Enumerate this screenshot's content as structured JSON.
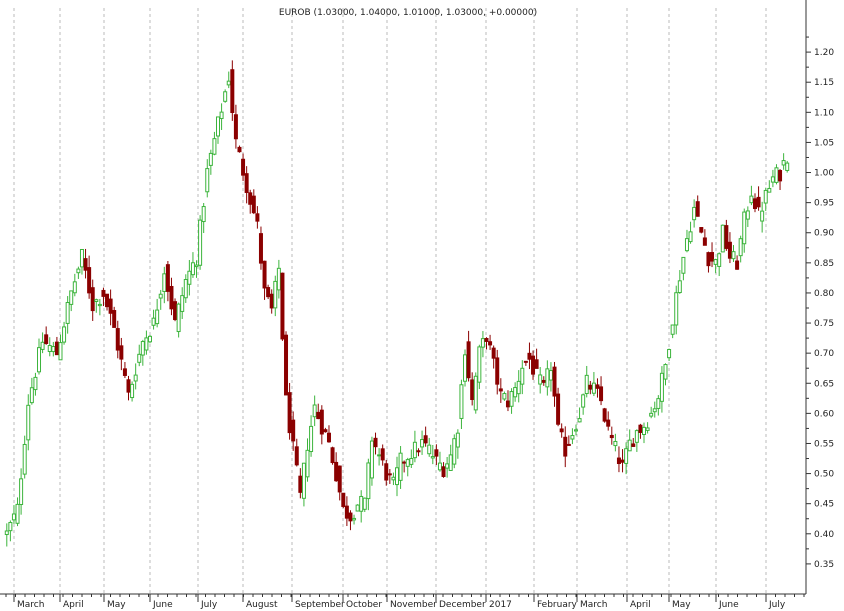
{
  "chart_data": {
    "type": "candlestick",
    "title": "EUROB (1.03000, 1.04000, 1.01000, 1.03000, +0.00000)",
    "ylim": [
      0.3,
      1.25
    ],
    "yticks": [
      0.35,
      0.4,
      0.45,
      0.5,
      0.55,
      0.6,
      0.65,
      0.7,
      0.75,
      0.8,
      0.85,
      0.9,
      0.95,
      1.0,
      1.05,
      1.1,
      1.15,
      1.2
    ],
    "ytick_labels": [
      "0.35",
      "0.40",
      "0.45",
      "0.50",
      "0.55",
      "0.60",
      "0.65",
      "0.70",
      "0.75",
      "0.80",
      "0.85",
      "0.90",
      "0.95",
      "1.00",
      "1.05",
      "1.10",
      "1.15",
      "1.20"
    ],
    "months": [
      "March",
      "April",
      "May",
      "June",
      "July",
      "August",
      "September",
      "October",
      "November",
      "December",
      "2017",
      "February",
      "March",
      "April",
      "May",
      "June",
      "July"
    ],
    "grid": "vertical-dashed",
    "colors": {
      "up": "#3cb43c",
      "down": "#8b0000",
      "grid": "#bbbbbb",
      "axis": "#333333"
    },
    "keypoints": [
      [
        0,
        0.4
      ],
      [
        3,
        0.44
      ],
      [
        6,
        0.62
      ],
      [
        10,
        0.72
      ],
      [
        14,
        0.7
      ],
      [
        18,
        0.8
      ],
      [
        21,
        0.86
      ],
      [
        24,
        0.78
      ],
      [
        27,
        0.8
      ],
      [
        30,
        0.74
      ],
      [
        34,
        0.63
      ],
      [
        38,
        0.72
      ],
      [
        41,
        0.75
      ],
      [
        44,
        0.84
      ],
      [
        47,
        0.75
      ],
      [
        50,
        0.82
      ],
      [
        53,
        0.86
      ],
      [
        56,
        1.0
      ],
      [
        59,
        1.08
      ],
      [
        62,
        1.16
      ],
      [
        64,
        1.05
      ],
      [
        67,
        0.98
      ],
      [
        70,
        0.91
      ],
      [
        72,
        0.8
      ],
      [
        74,
        0.77
      ],
      [
        76,
        0.84
      ],
      [
        78,
        0.62
      ],
      [
        80,
        0.54
      ],
      [
        82,
        0.46
      ],
      [
        84,
        0.55
      ],
      [
        86,
        0.61
      ],
      [
        88,
        0.58
      ],
      [
        90,
        0.55
      ],
      [
        92,
        0.5
      ],
      [
        94,
        0.44
      ],
      [
        96,
        0.43
      ],
      [
        98,
        0.45
      ],
      [
        100,
        0.45
      ],
      [
        102,
        0.56
      ],
      [
        104,
        0.53
      ],
      [
        106,
        0.5
      ],
      [
        108,
        0.48
      ],
      [
        110,
        0.52
      ],
      [
        112,
        0.53
      ],
      [
        114,
        0.54
      ],
      [
        116,
        0.55
      ],
      [
        118,
        0.54
      ],
      [
        120,
        0.52
      ],
      [
        122,
        0.51
      ],
      [
        124,
        0.53
      ],
      [
        126,
        0.58
      ],
      [
        128,
        0.71
      ],
      [
        130,
        0.62
      ],
      [
        132,
        0.7
      ],
      [
        134,
        0.73
      ],
      [
        136,
        0.68
      ],
      [
        138,
        0.63
      ],
      [
        140,
        0.62
      ],
      [
        142,
        0.64
      ],
      [
        144,
        0.68
      ],
      [
        146,
        0.69
      ],
      [
        148,
        0.66
      ],
      [
        150,
        0.64
      ],
      [
        152,
        0.68
      ],
      [
        154,
        0.57
      ],
      [
        156,
        0.54
      ],
      [
        158,
        0.57
      ],
      [
        160,
        0.6
      ],
      [
        162,
        0.65
      ],
      [
        164,
        0.64
      ],
      [
        166,
        0.62
      ],
      [
        168,
        0.57
      ],
      [
        170,
        0.54
      ],
      [
        172,
        0.51
      ],
      [
        174,
        0.55
      ],
      [
        176,
        0.57
      ],
      [
        178,
        0.58
      ],
      [
        180,
        0.6
      ],
      [
        182,
        0.63
      ],
      [
        184,
        0.68
      ],
      [
        186,
        0.76
      ],
      [
        188,
        0.83
      ],
      [
        190,
        0.89
      ],
      [
        192,
        0.94
      ],
      [
        194,
        0.9
      ],
      [
        196,
        0.86
      ],
      [
        198,
        0.85
      ],
      [
        200,
        0.9
      ],
      [
        202,
        0.86
      ],
      [
        204,
        0.85
      ],
      [
        206,
        0.92
      ],
      [
        208,
        0.97
      ],
      [
        210,
        0.93
      ],
      [
        212,
        0.96
      ],
      [
        214,
        0.99
      ],
      [
        216,
        1.0
      ],
      [
        218,
        1.03
      ]
    ]
  }
}
